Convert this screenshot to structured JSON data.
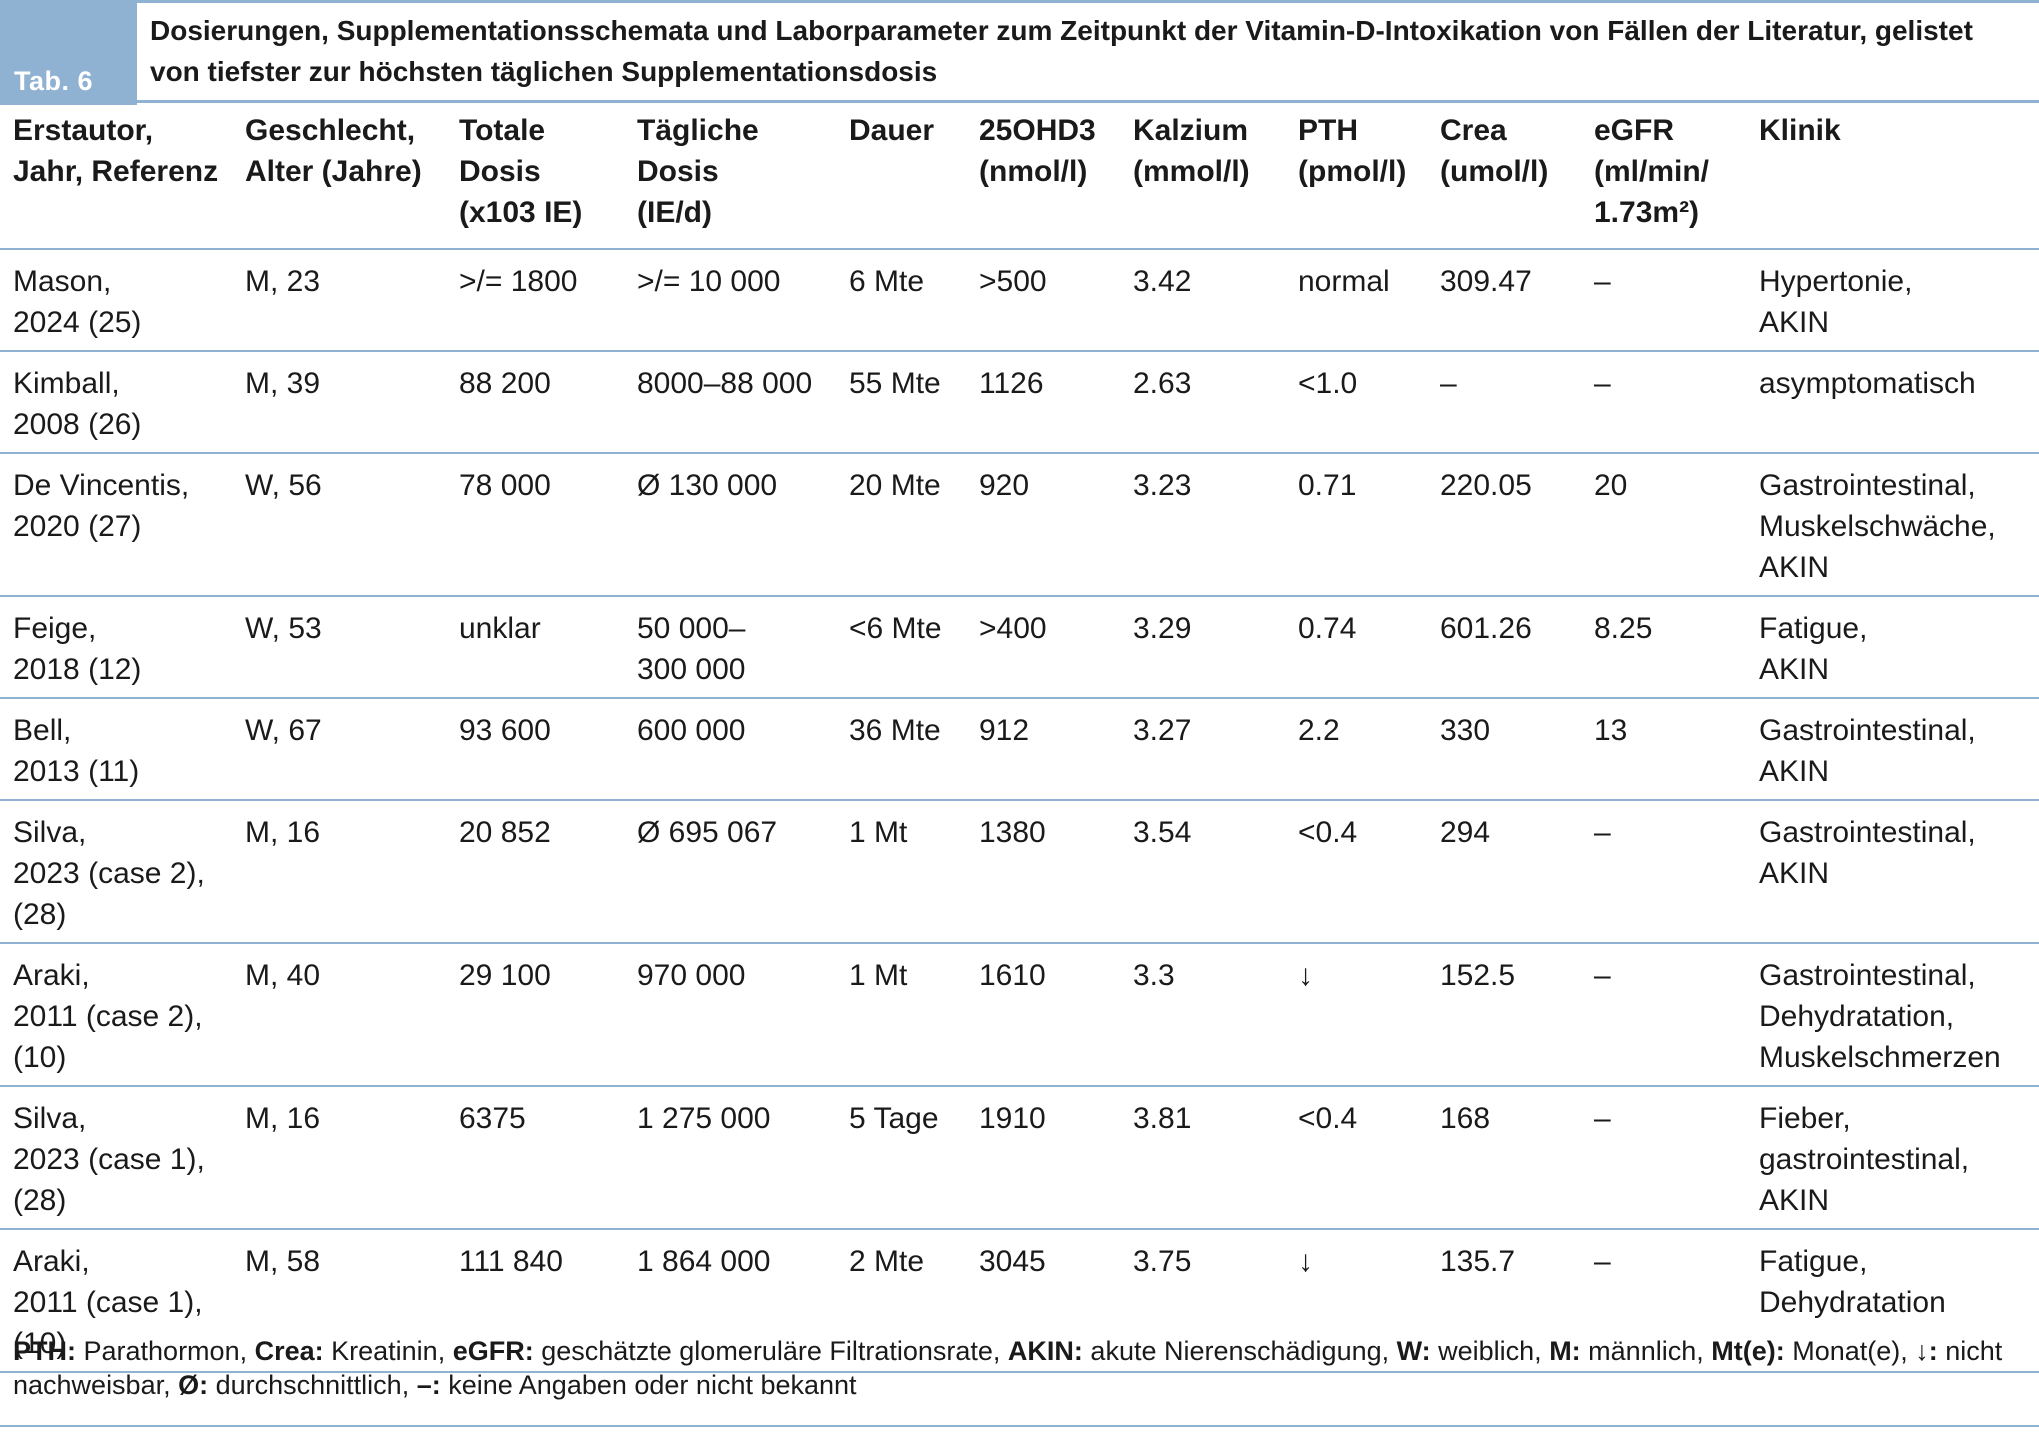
{
  "table_label": "Tab. 6",
  "title": "Dosierungen, Supplementationsschemata und Laborparameter zum Zeitpunkt der Vitamin-D-Intoxikation von Fällen der Literatur, gelistet von tiefster zur höchsten täglichen Supplementationsdosis",
  "columns": [
    [
      "Erstautor,",
      "Jahr, Referenz"
    ],
    [
      "Geschlecht,",
      "Alter (Jahre)"
    ],
    [
      "Totale",
      "Dosis",
      "(x103 IE)"
    ],
    [
      "Tägliche",
      "Dosis",
      "(IE/d)"
    ],
    [
      "Dauer"
    ],
    [
      "25OHD3",
      "(nmol/l)"
    ],
    [
      "Kalzium",
      "(mmol/l)"
    ],
    [
      "PTH",
      "(pmol/l)"
    ],
    [
      "Crea",
      "(umol/l)"
    ],
    [
      "eGFR",
      "(ml/min/",
      "1.73m²)"
    ],
    [
      "Klinik"
    ]
  ],
  "rows": [
    [
      [
        "Mason,",
        "2024 (25)"
      ],
      [
        "M, 23"
      ],
      [
        ">/= 1800"
      ],
      [
        ">/= 10 000"
      ],
      [
        "6 Mte"
      ],
      [
        ">500"
      ],
      [
        "3.42"
      ],
      [
        "normal"
      ],
      [
        "309.47"
      ],
      [
        "–"
      ],
      [
        "Hypertonie,",
        "AKIN"
      ]
    ],
    [
      [
        "Kimball,",
        "2008 (26)"
      ],
      [
        "M, 39"
      ],
      [
        "88 200"
      ],
      [
        "8000–88 000"
      ],
      [
        "55 Mte"
      ],
      [
        "1126"
      ],
      [
        "2.63"
      ],
      [
        "<1.0"
      ],
      [
        "–"
      ],
      [
        "–"
      ],
      [
        "asymptomatisch"
      ]
    ],
    [
      [
        "De Vincentis,",
        "2020 (27)"
      ],
      [
        "W, 56"
      ],
      [
        "78 000"
      ],
      [
        "Ø 130 000"
      ],
      [
        "20 Mte"
      ],
      [
        "920"
      ],
      [
        "3.23"
      ],
      [
        "0.71"
      ],
      [
        "220.05"
      ],
      [
        "20"
      ],
      [
        "Gastrointestinal,",
        "Muskelschwäche,",
        "AKIN"
      ]
    ],
    [
      [
        "Feige,",
        "2018 (12)"
      ],
      [
        "W, 53"
      ],
      [
        "unklar"
      ],
      [
        "50 000–",
        "300 000"
      ],
      [
        "<6 Mte"
      ],
      [
        ">400"
      ],
      [
        "3.29"
      ],
      [
        "0.74"
      ],
      [
        "601.26"
      ],
      [
        "8.25"
      ],
      [
        "Fatigue,",
        "AKIN"
      ]
    ],
    [
      [
        "Bell,",
        "2013 (11)"
      ],
      [
        "W, 67"
      ],
      [
        "93 600"
      ],
      [
        "600 000"
      ],
      [
        "36 Mte"
      ],
      [
        "912"
      ],
      [
        "3.27"
      ],
      [
        "2.2"
      ],
      [
        "330"
      ],
      [
        "13"
      ],
      [
        "Gastrointestinal,",
        "AKIN"
      ]
    ],
    [
      [
        "Silva,",
        "2023 (case 2),",
        "(28)"
      ],
      [
        "M, 16"
      ],
      [
        "20 852"
      ],
      [
        "Ø 695 067"
      ],
      [
        "1 Mt"
      ],
      [
        "1380"
      ],
      [
        "3.54"
      ],
      [
        "<0.4"
      ],
      [
        "294"
      ],
      [
        "–"
      ],
      [
        "Gastrointestinal,",
        "AKIN"
      ]
    ],
    [
      [
        "Araki,",
        "2011 (case 2),",
        "(10)"
      ],
      [
        "M, 40"
      ],
      [
        "29 100"
      ],
      [
        "970 000"
      ],
      [
        "1 Mt"
      ],
      [
        "1610"
      ],
      [
        "3.3"
      ],
      [
        "↓"
      ],
      [
        "152.5"
      ],
      [
        "–"
      ],
      [
        "Gastrointestinal,",
        "Dehydratation,",
        "Muskelschmerzen"
      ]
    ],
    [
      [
        "Silva,",
        "2023 (case 1),",
        "(28)"
      ],
      [
        "M, 16"
      ],
      [
        "6375"
      ],
      [
        "1 275 000"
      ],
      [
        "5 Tage"
      ],
      [
        "1910"
      ],
      [
        "3.81"
      ],
      [
        "<0.4"
      ],
      [
        "168"
      ],
      [
        "–"
      ],
      [
        "Fieber,",
        "gastrointestinal,",
        "AKIN"
      ]
    ],
    [
      [
        "Araki,",
        "2011 (case 1),",
        "(10)"
      ],
      [
        "M, 58"
      ],
      [
        "111 840"
      ],
      [
        "1 864 000"
      ],
      [
        "2 Mte"
      ],
      [
        "3045"
      ],
      [
        "3.75"
      ],
      [
        "↓"
      ],
      [
        "135.7"
      ],
      [
        "–"
      ],
      [
        "Fatigue,",
        "Dehydratation"
      ]
    ]
  ],
  "footnote": [
    {
      "term": "PTH:",
      "def": "Parathormon,"
    },
    {
      "term": "Crea:",
      "def": "Kreatinin,"
    },
    {
      "term": "eGFR:",
      "def": "geschätzte glomeruläre Filtrationsrate,"
    },
    {
      "term": "AKIN:",
      "def": "akute Nierenschädigung,"
    },
    {
      "term": "W:",
      "def": "weiblich,"
    },
    {
      "term": "M:",
      "def": "männlich,"
    },
    {
      "term": "Mt(e):",
      "def": "Monat(e),"
    },
    {
      "term": "↓:",
      "def": "nicht nachweisbar,"
    },
    {
      "term": "Ø:",
      "def": "durchschnittlich,"
    },
    {
      "term": "–:",
      "def": "keine Angaben oder nicht bekannt"
    }
  ]
}
